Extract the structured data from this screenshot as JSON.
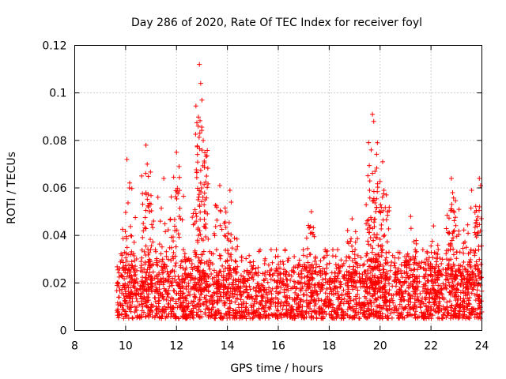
{
  "chart_data": {
    "type": "scatter",
    "title": "Day 286 of 2020, Rate Of TEC Index for receiver foyl",
    "xlabel": "GPS time / hours",
    "ylabel": "ROTI / TECUs",
    "xlim": [
      8,
      24
    ],
    "ylim": [
      0,
      0.12
    ],
    "x_ticks": [
      8,
      10,
      12,
      14,
      16,
      18,
      20,
      22,
      24
    ],
    "x_tick_labels": [
      "8",
      "10",
      "12",
      "14",
      "16",
      "18",
      "20",
      "22",
      "24"
    ],
    "y_ticks": [
      0,
      0.02,
      0.04,
      0.06,
      0.08,
      0.1,
      0.12
    ],
    "y_tick_labels": [
      "0",
      "0.02",
      "0.04",
      "0.06",
      "0.08",
      "0.1",
      "0.12"
    ],
    "grid": true,
    "marker": "plus",
    "color": "#ff0000",
    "data_range_hours": [
      9.65,
      24.0
    ],
    "baseline_band": [
      0.005,
      0.03
    ],
    "series": [
      {
        "name": "ROTI",
        "peaks": [
          {
            "x": 10.05,
            "y": 0.072
          },
          {
            "x": 10.15,
            "y": 0.06
          },
          {
            "x": 10.8,
            "y": 0.078
          },
          {
            "x": 10.85,
            "y": 0.07
          },
          {
            "x": 10.9,
            "y": 0.052
          },
          {
            "x": 11.5,
            "y": 0.064
          },
          {
            "x": 12.0,
            "y": 0.075
          },
          {
            "x": 12.1,
            "y": 0.069
          },
          {
            "x": 12.9,
            "y": 0.112
          },
          {
            "x": 12.95,
            "y": 0.104
          },
          {
            "x": 13.0,
            "y": 0.097
          },
          {
            "x": 12.85,
            "y": 0.086
          },
          {
            "x": 13.05,
            "y": 0.08
          },
          {
            "x": 13.7,
            "y": 0.061
          },
          {
            "x": 14.1,
            "y": 0.059
          },
          {
            "x": 14.15,
            "y": 0.054
          },
          {
            "x": 17.3,
            "y": 0.05
          },
          {
            "x": 18.9,
            "y": 0.047
          },
          {
            "x": 19.7,
            "y": 0.091
          },
          {
            "x": 19.75,
            "y": 0.088
          },
          {
            "x": 19.65,
            "y": 0.076
          },
          {
            "x": 19.8,
            "y": 0.067
          },
          {
            "x": 20.1,
            "y": 0.071
          },
          {
            "x": 20.15,
            "y": 0.059
          },
          {
            "x": 21.2,
            "y": 0.048
          },
          {
            "x": 22.1,
            "y": 0.044
          },
          {
            "x": 22.8,
            "y": 0.064
          },
          {
            "x": 22.85,
            "y": 0.058
          },
          {
            "x": 23.1,
            "y": 0.051
          },
          {
            "x": 23.6,
            "y": 0.059
          },
          {
            "x": 23.9,
            "y": 0.064
          },
          {
            "x": 23.95,
            "y": 0.061
          }
        ]
      }
    ]
  }
}
